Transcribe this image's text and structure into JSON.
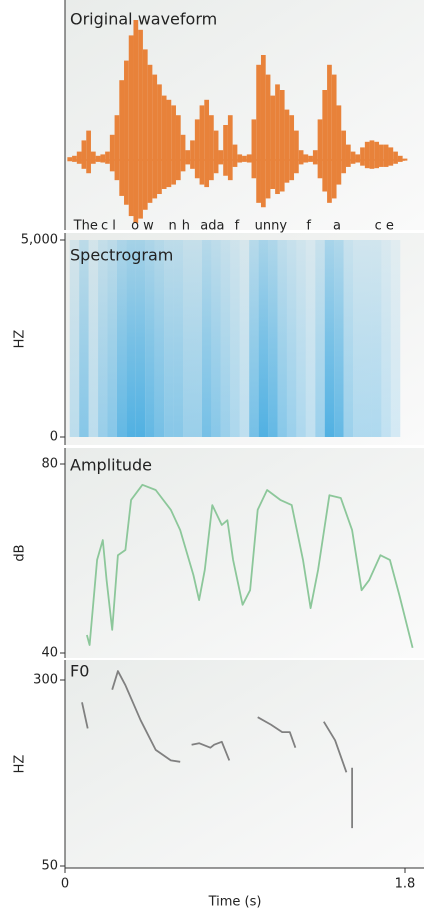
{
  "chart_data": [
    {
      "type": "area",
      "title": "Original waveform",
      "color": "#e8823a",
      "x": [
        0.025,
        0.05,
        0.075,
        0.1,
        0.125,
        0.15,
        0.175,
        0.2,
        0.225,
        0.25,
        0.275,
        0.3,
        0.325,
        0.35,
        0.375,
        0.4,
        0.425,
        0.45,
        0.475,
        0.5,
        0.525,
        0.55,
        0.575,
        0.6,
        0.625,
        0.65,
        0.675,
        0.7,
        0.725,
        0.75,
        0.775,
        0.8,
        0.825,
        0.85,
        0.875,
        0.9,
        0.925,
        0.95,
        0.975,
        1.0,
        1.025,
        1.05,
        1.075,
        1.1,
        1.125,
        1.15,
        1.175,
        1.2,
        1.225,
        1.25,
        1.275,
        1.3,
        1.325,
        1.35,
        1.375,
        1.4,
        1.425,
        1.45,
        1.475,
        1.5,
        1.525,
        1.55,
        1.575,
        1.6,
        1.625,
        1.65,
        1.675,
        1.7,
        1.725,
        1.75,
        1.775,
        1.8
      ],
      "values": [
        0.02,
        0.03,
        0.06,
        0.14,
        0.21,
        0.06,
        0.03,
        0.04,
        0.06,
        0.18,
        0.32,
        0.57,
        0.71,
        0.89,
        1,
        0.93,
        0.79,
        0.68,
        0.61,
        0.54,
        0.46,
        0.43,
        0.39,
        0.32,
        0.18,
        0.07,
        0.14,
        0.29,
        0.39,
        0.43,
        0.32,
        0.21,
        0.07,
        0.25,
        0.32,
        0.11,
        0.04,
        0.03,
        0.04,
        0.29,
        0.68,
        0.75,
        0.61,
        0.46,
        0.54,
        0.5,
        0.36,
        0.32,
        0.21,
        0.07,
        0.04,
        0.03,
        0.07,
        0.29,
        0.5,
        0.68,
        0.61,
        0.39,
        0.21,
        0.11,
        0.06,
        0.04,
        0.09,
        0.13,
        0.14,
        0.13,
        0.11,
        0.11,
        0.09,
        0.06,
        0.03,
        0.01
      ],
      "annotations": [
        {
          "text": "The",
          "x": 0.11
        },
        {
          "text": "c l",
          "x": 0.23
        },
        {
          "text": "o w",
          "x": 0.41
        },
        {
          "text": "n",
          "x": 0.57
        },
        {
          "text": "h",
          "x": 0.64
        },
        {
          "text": "ada",
          "x": 0.78
        },
        {
          "text": "f",
          "x": 0.91
        },
        {
          "text": "unny",
          "x": 1.09
        },
        {
          "text": "f",
          "x": 1.29
        },
        {
          "text": "a",
          "x": 1.44
        },
        {
          "text": "c e",
          "x": 1.69
        }
      ]
    },
    {
      "type": "heatmap",
      "title": "Spectrogram",
      "ylabel": "HZ",
      "color": "#3fa9e0",
      "x": [
        0.05,
        0.1,
        0.15,
        0.2,
        0.25,
        0.3,
        0.35,
        0.4,
        0.45,
        0.5,
        0.55,
        0.6,
        0.65,
        0.7,
        0.75,
        0.8,
        0.85,
        0.9,
        0.95,
        1.0,
        1.05,
        1.1,
        1.15,
        1.2,
        1.25,
        1.3,
        1.35,
        1.4,
        1.45,
        1.5,
        1.55,
        1.6,
        1.65,
        1.7,
        1.75
      ],
      "values": [
        0.3,
        0.6,
        0.3,
        0.5,
        0.6,
        0.8,
        0.9,
        0.9,
        0.8,
        0.7,
        0.6,
        0.6,
        0.5,
        0.5,
        0.7,
        0.6,
        0.5,
        0.4,
        0.3,
        0.7,
        0.9,
        0.8,
        0.6,
        0.5,
        0.4,
        0.3,
        0.5,
        0.9,
        0.8,
        0.5,
        0.4,
        0.4,
        0.4,
        0.3,
        0.2
      ],
      "ylim": [
        0,
        5000
      ],
      "yticks": [
        0,
        {
          "value": 5000,
          "label": "5,000"
        }
      ]
    },
    {
      "type": "line",
      "title": "Amplitude",
      "ylabel": "dB",
      "color": "#8cc79a",
      "x": [
        0.116,
        0.13,
        0.17,
        0.2,
        0.22,
        0.25,
        0.28,
        0.32,
        0.35,
        0.41,
        0.48,
        0.56,
        0.61,
        0.68,
        0.71,
        0.74,
        0.78,
        0.83,
        0.86,
        0.89,
        0.94,
        0.98,
        1.02,
        1.07,
        1.14,
        1.2,
        1.26,
        1.3,
        1.34,
        1.4,
        1.46,
        1.52,
        1.57,
        1.61,
        1.67,
        1.72,
        1.77,
        1.84
      ],
      "values": [
        43.8,
        41.7,
        59.7,
        63.9,
        55.4,
        44.9,
        60.7,
        61.8,
        72.4,
        75.6,
        74.5,
        70.3,
        66.0,
        56.5,
        51.2,
        57.6,
        71.3,
        67.1,
        68.1,
        59.7,
        50.2,
        53.3,
        70.3,
        74.5,
        72.4,
        71.3,
        59.7,
        49.5,
        57.6,
        73.4,
        72.8,
        66.0,
        53.3,
        55.4,
        60.7,
        59.7,
        52.3,
        41.1
      ],
      "ylim": [
        40,
        80
      ],
      "yticks": [
        40,
        80
      ]
    },
    {
      "type": "line",
      "title": "F0",
      "ylabel": "HZ",
      "xlabel": "Time (s)",
      "color": "#808080",
      "x": [
        0.09,
        0.12,
        0.2,
        0.25,
        0.28,
        0.32,
        0.4,
        0.48,
        0.56,
        0.61,
        0.64,
        0.67,
        0.71,
        0.77,
        0.79,
        0.83,
        0.87,
        0.95,
        1.02,
        1.09,
        1.15,
        1.19,
        1.22,
        1.3,
        1.37,
        1.43,
        1.49,
        1.51,
        1.52,
        1.52
      ],
      "values": [
        270,
        235,
        null,
        287,
        312,
        293,
        246,
        206,
        192,
        190,
        null,
        213,
        215,
        209,
        213,
        217,
        192,
        null,
        250,
        240,
        230,
        230,
        209,
        null,
        244,
        219,
        176,
        null,
        182,
        101
      ],
      "ylim": [
        50,
        300
      ],
      "yticks": [
        50,
        300
      ],
      "xlim": [
        0,
        1.8
      ],
      "xticks": [
        0,
        1.8
      ]
    }
  ]
}
